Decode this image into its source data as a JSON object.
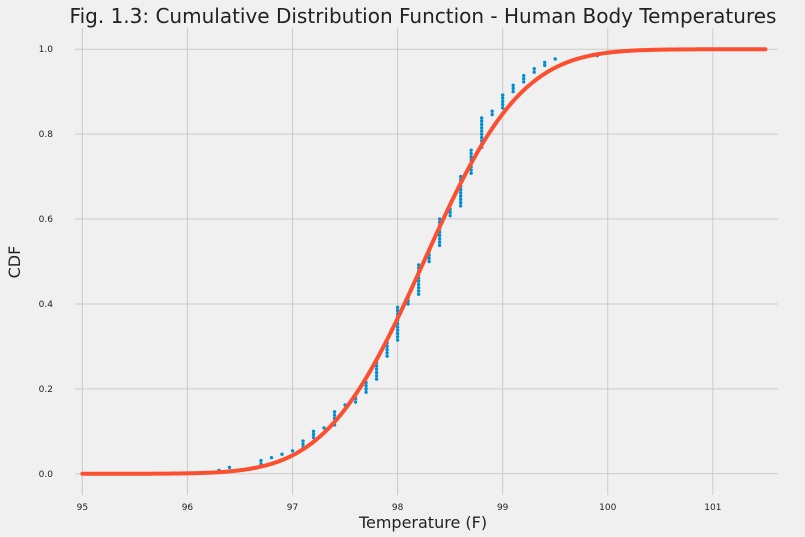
{
  "chart_data": {
    "type": "scatter",
    "title": "Fig. 1.3: Cumulative Distribution Function - Human Body Temperatures",
    "xlabel": "Temperature (F)",
    "ylabel": "CDF",
    "xlim": [
      94.93,
      101.62
    ],
    "ylim": [
      -0.05,
      1.05
    ],
    "x_ticks": [
      95,
      96,
      97,
      98,
      99,
      100,
      101
    ],
    "y_ticks": [
      0.0,
      0.2,
      0.4,
      0.6,
      0.8,
      1.0
    ],
    "x_tick_labels": [
      "95",
      "96",
      "97",
      "98",
      "99",
      "100",
      "101"
    ],
    "y_tick_labels": [
      "0.0",
      "0.2",
      "0.4",
      "0.6",
      "0.8",
      "1.0"
    ],
    "grid": true,
    "colors": {
      "background": "#f0f0f0",
      "empirical": "#008fd5",
      "theoretical": "#fc4f30",
      "grid": "#cbcbcb"
    },
    "series": [
      {
        "kind": "points",
        "color": "#008fd5",
        "groups": [
          {
            "x": 96.3,
            "from": 0.008,
            "to": 0.008
          },
          {
            "x": 96.4,
            "from": 0.015,
            "to": 0.015
          },
          {
            "x": 96.7,
            "from": 0.023,
            "to": 0.031
          },
          {
            "x": 96.8,
            "from": 0.038,
            "to": 0.038
          },
          {
            "x": 96.9,
            "from": 0.046,
            "to": 0.046
          },
          {
            "x": 97.0,
            "from": 0.054,
            "to": 0.054
          },
          {
            "x": 97.1,
            "from": 0.062,
            "to": 0.077
          },
          {
            "x": 97.2,
            "from": 0.085,
            "to": 0.1
          },
          {
            "x": 97.3,
            "from": 0.108,
            "to": 0.108
          },
          {
            "x": 97.4,
            "from": 0.115,
            "to": 0.146
          },
          {
            "x": 97.5,
            "from": 0.162,
            "to": 0.162
          },
          {
            "x": 97.6,
            "from": 0.169,
            "to": 0.185
          },
          {
            "x": 97.7,
            "from": 0.192,
            "to": 0.215
          },
          {
            "x": 97.8,
            "from": 0.223,
            "to": 0.262
          },
          {
            "x": 97.9,
            "from": 0.277,
            "to": 0.308
          },
          {
            "x": 98.0,
            "from": 0.315,
            "to": 0.392
          },
          {
            "x": 98.1,
            "from": 0.4,
            "to": 0.415
          },
          {
            "x": 98.2,
            "from": 0.423,
            "to": 0.492
          },
          {
            "x": 98.3,
            "from": 0.5,
            "to": 0.523
          },
          {
            "x": 98.4,
            "from": 0.538,
            "to": 0.6
          },
          {
            "x": 98.5,
            "from": 0.608,
            "to": 0.623
          },
          {
            "x": 98.6,
            "from": 0.631,
            "to": 0.7
          },
          {
            "x": 98.7,
            "from": 0.708,
            "to": 0.762
          },
          {
            "x": 98.8,
            "from": 0.769,
            "to": 0.838
          },
          {
            "x": 98.9,
            "from": 0.846,
            "to": 0.854
          },
          {
            "x": 99.0,
            "from": 0.862,
            "to": 0.892
          },
          {
            "x": 99.1,
            "from": 0.9,
            "to": 0.915
          },
          {
            "x": 99.2,
            "from": 0.923,
            "to": 0.938
          },
          {
            "x": 99.3,
            "from": 0.946,
            "to": 0.954
          },
          {
            "x": 99.4,
            "from": 0.962,
            "to": 0.969
          },
          {
            "x": 99.5,
            "from": 0.977,
            "to": 0.977
          },
          {
            "x": 99.9,
            "from": 0.985,
            "to": 0.985
          },
          {
            "x": 100.0,
            "from": 0.992,
            "to": 0.992
          },
          {
            "x": 100.8,
            "from": 1.0,
            "to": 1.0
          }
        ]
      },
      {
        "kind": "curve",
        "color": "#fc4f30",
        "distribution": "normal",
        "mean": 98.25,
        "std": 0.73,
        "x_range": [
          95.0,
          101.5
        ]
      }
    ]
  }
}
